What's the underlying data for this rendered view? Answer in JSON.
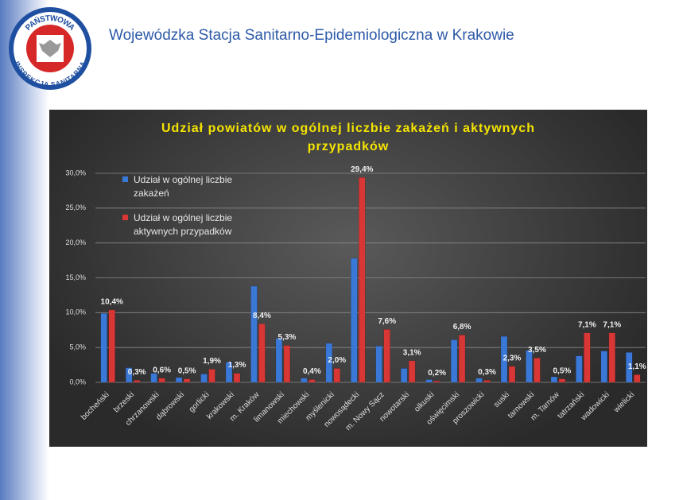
{
  "header": {
    "title": "Wojewódzka Stacja Sanitarno-Epidemiologiczna w Krakowie"
  },
  "logo": {
    "top": "PAŃSTWOWA",
    "bottom": "INSPEKCJA SANITARNA"
  },
  "chart_data": {
    "type": "bar",
    "title": "Udział powiatów w ogólnej liczbie zakażeń i aktywnych przypadków",
    "categories": [
      "bocheński",
      "brzeski",
      "chrzanowski",
      "dąbrowski",
      "gorlicki",
      "krakowski",
      "m. Kraków",
      "limanowski",
      "miechowski",
      "myślenicki",
      "nowosądecki",
      "m. Nowy Sącz",
      "nowotarski",
      "olkuski",
      "oświęcimski",
      "proszowicki",
      "suski",
      "tarnowski",
      "m. Tarnów",
      "tatrzański",
      "wadowicki",
      "wielicki"
    ],
    "series": [
      {
        "name": "Udział w ogólnej liczbie zakażeń",
        "color": "#3a78d8",
        "values": [
          9.9,
          2.1,
          1.3,
          0.7,
          1.2,
          2.9,
          13.8,
          6.3,
          0.6,
          5.6,
          17.8,
          5.2,
          2.0,
          0.4,
          6.1,
          0.6,
          6.6,
          4.6,
          0.8,
          3.8,
          4.5,
          4.3
        ]
      },
      {
        "name": "Udział w ogólnej liczbie aktywnych przypadków",
        "color": "#d93636",
        "values": [
          10.4,
          0.3,
          0.6,
          0.5,
          1.9,
          1.3,
          8.4,
          5.3,
          0.4,
          2.0,
          29.4,
          7.6,
          3.1,
          0.2,
          6.8,
          0.3,
          2.3,
          3.5,
          0.5,
          7.1,
          7.1,
          1.1
        ],
        "value_labels": [
          "10,4%",
          "0,3%",
          "0,6%",
          "0,5%",
          "1,9%",
          "1,3%",
          "8,4%",
          "5,3%",
          "0,4%",
          "2,0%",
          "29,4%",
          "7,6%",
          "3,1%",
          "0,2%",
          "6,8%",
          "0,3%",
          "2,3%",
          "3,5%",
          "0,5%",
          "7,1%",
          "7,1%",
          "1,1%"
        ]
      }
    ],
    "ylim": [
      0,
      30
    ],
    "yticks": [
      {
        "value": 0,
        "label": "0,0%"
      },
      {
        "value": 5,
        "label": "5,0%"
      },
      {
        "value": 10,
        "label": "10,0%"
      },
      {
        "value": 15,
        "label": "15,0%"
      },
      {
        "value": 20,
        "label": "20,0%"
      },
      {
        "value": 25,
        "label": "25,0%"
      },
      {
        "value": 30,
        "label": "30,0%"
      }
    ],
    "grid": true,
    "legend": "top-left"
  }
}
